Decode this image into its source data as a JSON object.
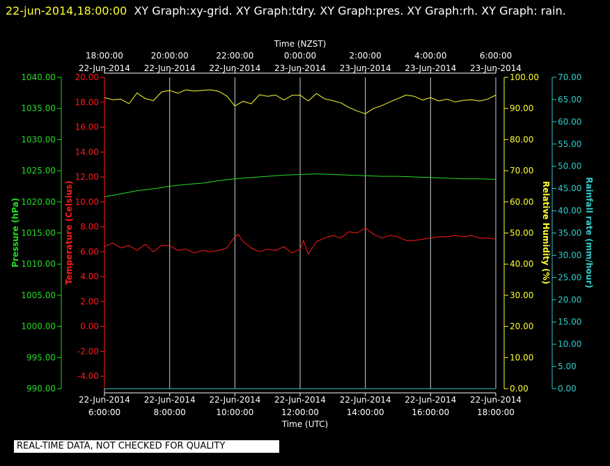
{
  "header": {
    "datetime": "22-jun-2014,18:00:00",
    "titles": "XY Graph:xy-grid.  XY Graph:tdry.  XY Graph:pres.  XY Graph:rh.  XY Graph: rain."
  },
  "quality_notice": "REAL-TIME DATA, NOT CHECKED FOR QUALITY",
  "colors": {
    "background": "#000000",
    "grid": "#c8d2dc",
    "temperature": "#ff1a1a",
    "pressure": "#22dd22",
    "humidity": "#ffff33",
    "rain": "#33cccc",
    "date_text": "#ffff33",
    "text": "#ffffff"
  },
  "chart_data": {
    "type": "line",
    "x_top_title": "Time (NZST)",
    "x_bottom_title": "Time (UTC)",
    "x_utc_hours": [
      6,
      8,
      10,
      12,
      14,
      16,
      18
    ],
    "x_ticks_nzst": [
      {
        "time": "18:00:00",
        "date": "22-Jun-2014"
      },
      {
        "time": "20:00:00",
        "date": "22-Jun-2014"
      },
      {
        "time": "22:00:00",
        "date": "22-Jun-2014"
      },
      {
        "time": "0:00:00",
        "date": "23-Jun-2014"
      },
      {
        "time": "2:00:00",
        "date": "23-Jun-2014"
      },
      {
        "time": "4:00:00",
        "date": "23-Jun-2014"
      },
      {
        "time": "6:00:00",
        "date": "23-Jun-2014"
      }
    ],
    "x_ticks_utc": [
      {
        "date": "22-Jun-2014",
        "time": "6:00:00"
      },
      {
        "date": "22-Jun-2014",
        "time": "8:00:00"
      },
      {
        "date": "22-Jun-2014",
        "time": "10:00:00"
      },
      {
        "date": "22-Jun-2014",
        "time": "12:00:00"
      },
      {
        "date": "22-Jun-2014",
        "time": "14:00:00"
      },
      {
        "date": "22-Jun-2014",
        "time": "16:00:00"
      },
      {
        "date": "22-Jun-2014",
        "time": "18:00:00"
      }
    ],
    "axes": {
      "pressure": {
        "label": "Pressure (hPa)",
        "range": [
          990,
          1040
        ],
        "ticks": [
          "1040.00",
          "1035.00",
          "1030.00",
          "1025.00",
          "1020.00",
          "1015.00",
          "1010.00",
          "1005.00",
          "1000.00",
          "995.00",
          "990.00"
        ]
      },
      "temperature": {
        "label": "Temperature (Celsius)",
        "range": [
          -5,
          20
        ],
        "ticks": [
          "20.00",
          "18.00",
          "16.00",
          "14.00",
          "12.00",
          "10.00",
          "8.00",
          "6.00",
          "4.00",
          "2.00",
          "0.00",
          "-2.00",
          "-4.00"
        ]
      },
      "humidity": {
        "label": "Relative Humidity (%)",
        "range": [
          0,
          100
        ],
        "ticks": [
          "100.00",
          "90.00",
          "80.00",
          "70.00",
          "60.00",
          "50.00",
          "40.00",
          "30.00",
          "20.00",
          "10.00",
          "0.00"
        ]
      },
      "rain": {
        "label": "Rainfall rate (mm/hour)",
        "range": [
          0,
          70
        ],
        "ticks": [
          "70.00",
          "65.00",
          "60.00",
          "55.00",
          "50.00",
          "45.00",
          "40.00",
          "35.00",
          "30.00",
          "25.00",
          "20.00",
          "15.00",
          "10.00",
          "5.00",
          "0.00"
        ]
      }
    },
    "series": [
      {
        "name": "tdry",
        "axis": "temperature",
        "x": [
          6.0,
          6.25,
          6.5,
          6.75,
          7.0,
          7.25,
          7.5,
          7.75,
          8.0,
          8.25,
          8.5,
          8.75,
          9.0,
          9.25,
          9.5,
          9.75,
          10.0,
          10.1,
          10.25,
          10.5,
          10.75,
          11.0,
          11.25,
          11.5,
          11.75,
          12.0,
          12.1,
          12.25,
          12.5,
          12.75,
          13.0,
          13.25,
          13.5,
          13.75,
          14.0,
          14.25,
          14.5,
          14.75,
          15.0,
          15.25,
          15.5,
          15.75,
          16.0,
          16.25,
          16.5,
          16.75,
          17.0,
          17.25,
          17.5,
          17.75,
          18.0
        ],
        "y": [
          6.4,
          6.7,
          6.3,
          6.5,
          6.1,
          6.6,
          6.0,
          6.5,
          6.5,
          6.1,
          6.2,
          5.9,
          6.1,
          6.0,
          6.1,
          6.3,
          7.2,
          7.4,
          6.8,
          6.3,
          6.0,
          6.2,
          6.1,
          6.4,
          5.9,
          6.2,
          6.9,
          5.8,
          6.8,
          7.1,
          7.3,
          7.1,
          7.6,
          7.5,
          7.9,
          7.4,
          7.1,
          7.3,
          7.2,
          6.9,
          6.9,
          7.0,
          7.1,
          7.2,
          7.2,
          7.3,
          7.2,
          7.3,
          7.1,
          7.1,
          7.0
        ]
      },
      {
        "name": "pres",
        "axis": "pressure",
        "x": [
          6.0,
          6.5,
          7.0,
          7.5,
          8.0,
          8.5,
          9.0,
          9.5,
          10.0,
          10.5,
          11.0,
          11.5,
          12.0,
          12.5,
          13.0,
          13.5,
          14.0,
          14.5,
          15.0,
          15.5,
          16.0,
          16.5,
          17.0,
          17.5,
          18.0
        ],
        "y": [
          1020.8,
          1021.3,
          1021.8,
          1022.1,
          1022.5,
          1022.8,
          1023.0,
          1023.4,
          1023.7,
          1023.9,
          1024.1,
          1024.3,
          1024.4,
          1024.5,
          1024.4,
          1024.3,
          1024.2,
          1024.1,
          1024.1,
          1024.0,
          1023.9,
          1023.8,
          1023.7,
          1023.7,
          1023.6
        ]
      },
      {
        "name": "rh",
        "axis": "humidity",
        "x": [
          6.0,
          6.25,
          6.5,
          6.75,
          7.0,
          7.25,
          7.5,
          7.75,
          8.0,
          8.25,
          8.5,
          8.75,
          9.0,
          9.25,
          9.5,
          9.75,
          10.0,
          10.25,
          10.5,
          10.75,
          11.0,
          11.25,
          11.5,
          11.75,
          12.0,
          12.25,
          12.5,
          12.75,
          13.0,
          13.25,
          13.5,
          13.75,
          14.0,
          14.25,
          14.5,
          14.75,
          15.0,
          15.25,
          15.5,
          15.75,
          16.0,
          16.25,
          16.5,
          16.75,
          17.0,
          17.25,
          17.5,
          17.75,
          18.0
        ],
        "y": [
          93.5,
          92.8,
          93.0,
          91.5,
          95.0,
          93.2,
          92.5,
          95.3,
          95.8,
          94.9,
          96.0,
          95.6,
          95.8,
          96.0,
          95.5,
          94.0,
          90.8,
          92.3,
          91.5,
          94.4,
          93.9,
          94.3,
          92.7,
          94.2,
          94.3,
          92.4,
          94.8,
          93.1,
          92.5,
          91.8,
          90.3,
          89.2,
          88.3,
          90.0,
          90.9,
          92.1,
          93.2,
          94.3,
          93.9,
          92.7,
          93.5,
          92.4,
          93.0,
          92.1,
          92.6,
          92.8,
          92.4,
          93.0,
          94.3
        ]
      },
      {
        "name": "rain",
        "axis": "rain",
        "x": [
          6.0,
          18.0
        ],
        "y": [
          0.0,
          0.0
        ]
      }
    ],
    "grid": true
  }
}
